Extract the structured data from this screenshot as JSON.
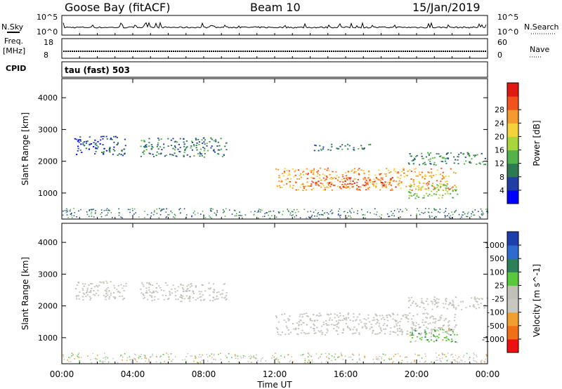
{
  "header": {
    "station": "Goose Bay (fitACF)",
    "beam": "Beam 10",
    "date": "15/Jan/2019"
  },
  "noise_panel": {
    "left_label": "N.Sky",
    "left_ticks": [
      "10^5",
      "10^0"
    ],
    "right_label": "N.Search",
    "right_ticks": [
      "10^5",
      "10^0"
    ]
  },
  "freq_panel": {
    "left_label": "Freq.",
    "left_unit": "[MHz]",
    "left_ticks": [
      "18",
      "8"
    ],
    "right_label": "Nave",
    "right_ticks": [
      "60",
      "0"
    ]
  },
  "cpid": {
    "label": "CPID",
    "value": "tau (fast) 503"
  },
  "xaxis": {
    "label": "Time UT",
    "ticks": [
      "00:00",
      "04:00",
      "08:00",
      "12:00",
      "16:00",
      "20:00",
      "00:00"
    ]
  },
  "chart_data": [
    {
      "type": "heatmap",
      "title": "Power",
      "ylabel": "Slant Range [km]",
      "yticks": [
        1000,
        2000,
        3000,
        4000
      ],
      "ylim": [
        180,
        4600
      ],
      "xlim_hours": [
        0,
        24
      ],
      "colorbar": {
        "label": "Power [dB]",
        "ticks": [
          "4",
          "8",
          "12",
          "16",
          "20",
          "24",
          "28"
        ],
        "colors": [
          "#0000ff",
          "#1f3fa5",
          "#2e7a50",
          "#53b34a",
          "#a8d43c",
          "#f5d23a",
          "#f59a2e",
          "#f2531d",
          "#e01a10"
        ]
      },
      "regions": [
        {
          "t0": 0.7,
          "t1": 3.6,
          "r0": 2200,
          "r1": 2800,
          "level": 6
        },
        {
          "t0": 4.4,
          "t1": 9.3,
          "r0": 2150,
          "r1": 2750,
          "level": 8
        },
        {
          "t0": 12.0,
          "t1": 22.2,
          "r0": 1100,
          "r1": 1800,
          "level": 22
        },
        {
          "t0": 14.0,
          "t1": 19.0,
          "r0": 1200,
          "r1": 1500,
          "level": 27
        },
        {
          "t0": 19.5,
          "t1": 22.3,
          "r0": 850,
          "r1": 1300,
          "level": 14
        },
        {
          "t0": 19.5,
          "t1": 24.0,
          "r0": 1900,
          "r1": 2300,
          "level": 10
        },
        {
          "t0": 14.2,
          "t1": 17.5,
          "r0": 2350,
          "r1": 2550,
          "level": 9
        }
      ]
    },
    {
      "type": "heatmap",
      "title": "Velocity",
      "ylabel": "Slant Range [km]",
      "yticks": [
        1000,
        2000,
        3000,
        4000
      ],
      "ylim": [
        180,
        4600
      ],
      "xlim_hours": [
        0,
        24
      ],
      "colorbar": {
        "label": "Velocity [m s^-1]",
        "ticks": [
          "1000",
          "500",
          "100",
          "25",
          "-25",
          "-100",
          "-500",
          "-1000"
        ],
        "colors": [
          "#1c3fae",
          "#2f6ad0",
          "#2d7f58",
          "#5ac83c",
          "#c0c0b8",
          "#c8c8c0",
          "#f0a030",
          "#f07018",
          "#ee1010"
        ]
      },
      "regions": [
        {
          "t0": 0.7,
          "t1": 3.6,
          "r0": 2200,
          "r1": 2800,
          "vel": 0
        },
        {
          "t0": 4.4,
          "t1": 9.3,
          "r0": 2150,
          "r1": 2750,
          "vel": 0
        },
        {
          "t0": 12.0,
          "t1": 22.2,
          "r0": 1100,
          "r1": 1800,
          "vel": 0
        },
        {
          "t0": 19.5,
          "t1": 24.0,
          "r0": 1900,
          "r1": 2300,
          "vel": 0
        },
        {
          "t0": 19.6,
          "t1": 22.3,
          "r0": 850,
          "r1": 1300,
          "vel": 150
        }
      ]
    }
  ]
}
